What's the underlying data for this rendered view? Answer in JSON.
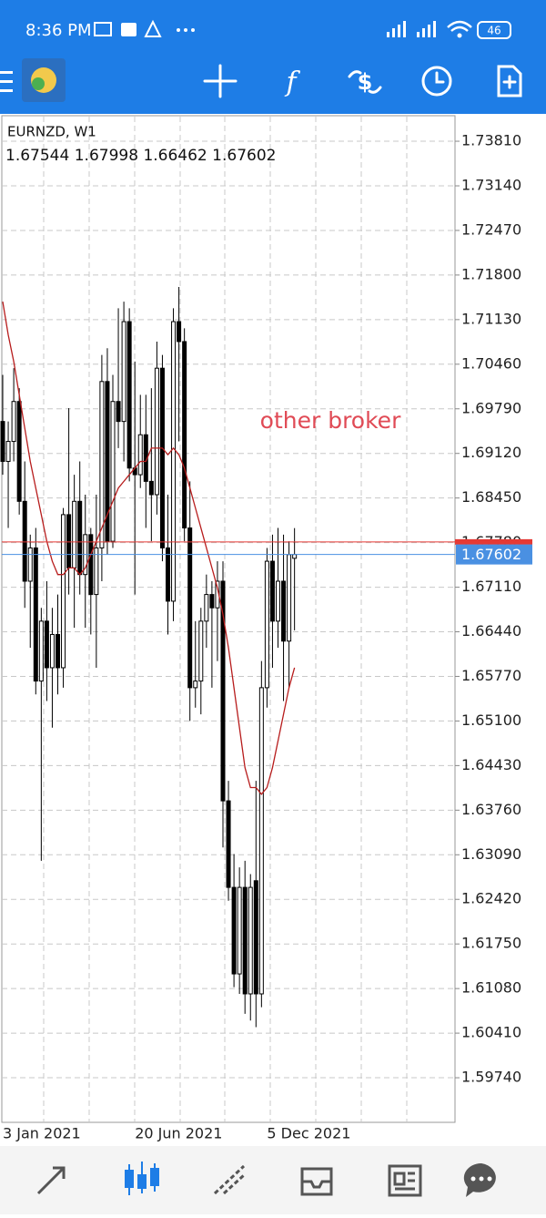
{
  "status_bar": {
    "time": "8:36 PM",
    "battery": "46"
  },
  "chart_data": {
    "type": "candlestick",
    "symbol": "EURNZD, W1",
    "last_ohlc": [
      1.67544,
      1.67998,
      1.66462,
      1.67602
    ],
    "annotation": "other broker",
    "annotation_color": "#e04a55",
    "up_color": "#ffffff",
    "down_color": "#000000",
    "categories": [
      "3 Jan 2021",
      null,
      null,
      null,
      null,
      null,
      null,
      null,
      null,
      null,
      null,
      null,
      null,
      null,
      null,
      null,
      null,
      null,
      null,
      null,
      null,
      null,
      null,
      null,
      "20 Jun 2021",
      null,
      null,
      null,
      null,
      null,
      null,
      null,
      null,
      null,
      null,
      null,
      null,
      null,
      null,
      null,
      null,
      null,
      null,
      null,
      null,
      null,
      null,
      null,
      "5 Dec 2021",
      null,
      null,
      null,
      null,
      null
    ],
    "open": [
      1.696,
      1.69,
      1.693,
      1.699,
      1.684,
      1.672,
      1.677,
      1.657,
      1.666,
      1.659,
      1.664,
      1.659,
      1.682,
      1.674,
      1.684,
      1.673,
      1.679,
      1.67,
      1.677,
      1.702,
      1.678,
      1.699,
      1.696,
      1.711,
      1.689,
      1.688,
      1.694,
      1.687,
      1.685,
      1.704,
      1.677,
      1.669,
      1.711,
      1.708,
      1.68,
      1.656,
      1.657,
      1.666,
      1.67,
      1.668,
      1.672,
      1.639,
      1.626,
      1.613,
      1.626,
      1.61,
      1.627,
      1.61,
      1.656,
      1.675,
      1.666,
      1.672,
      1.663,
      1.67544
    ],
    "high": [
      1.703,
      1.696,
      1.704,
      1.701,
      1.69,
      1.679,
      1.68,
      1.668,
      1.672,
      1.668,
      1.67,
      1.683,
      1.698,
      1.688,
      1.69,
      1.685,
      1.68,
      1.685,
      1.706,
      1.707,
      1.703,
      1.713,
      1.714,
      1.713,
      1.705,
      1.7,
      1.7,
      1.701,
      1.708,
      1.706,
      1.685,
      1.713,
      1.7162,
      1.71,
      1.687,
      1.666,
      1.668,
      1.673,
      1.672,
      1.675,
      1.675,
      1.642,
      1.631,
      1.629,
      1.63,
      1.628,
      1.642,
      1.66,
      1.677,
      1.679,
      1.68,
      1.679,
      1.678,
      1.67998
    ],
    "low": [
      1.688,
      1.68,
      1.69,
      1.682,
      1.668,
      1.662,
      1.655,
      1.63,
      1.654,
      1.65,
      1.655,
      1.656,
      1.67,
      1.665,
      1.67,
      1.665,
      1.664,
      1.659,
      1.672,
      1.676,
      1.677,
      1.692,
      1.69,
      1.687,
      1.67,
      1.686,
      1.68,
      1.678,
      1.682,
      1.675,
      1.664,
      1.666,
      1.693,
      1.678,
      1.651,
      1.653,
      1.652,
      1.662,
      1.656,
      1.66,
      1.632,
      1.624,
      1.611,
      1.61,
      1.607,
      1.606,
      1.605,
      1.608,
      1.653,
      1.659,
      1.662,
      1.654,
      1.656,
      1.66462
    ],
    "close": [
      1.69,
      1.693,
      1.699,
      1.684,
      1.672,
      1.677,
      1.657,
      1.666,
      1.659,
      1.664,
      1.659,
      1.682,
      1.674,
      1.684,
      1.673,
      1.679,
      1.67,
      1.677,
      1.702,
      1.678,
      1.699,
      1.696,
      1.711,
      1.689,
      1.688,
      1.694,
      1.687,
      1.685,
      1.704,
      1.677,
      1.669,
      1.711,
      1.708,
      1.68,
      1.656,
      1.657,
      1.666,
      1.67,
      1.668,
      1.672,
      1.639,
      1.626,
      1.613,
      1.626,
      1.61,
      1.626,
      1.61,
      1.656,
      1.675,
      1.666,
      1.672,
      1.663,
      1.676,
      1.67602
    ],
    "moving_average": {
      "color": "#b71c1c",
      "values": [
        1.714,
        1.709,
        1.705,
        1.7,
        1.695,
        1.69,
        1.686,
        1.682,
        1.678,
        1.675,
        1.673,
        1.673,
        1.674,
        1.674,
        1.673,
        1.674,
        1.676,
        1.678,
        1.68,
        1.682,
        1.684,
        1.686,
        1.687,
        1.688,
        1.689,
        1.69,
        1.69,
        1.692,
        1.692,
        1.692,
        1.691,
        1.692,
        1.691,
        1.689,
        1.686,
        1.683,
        1.68,
        1.677,
        1.674,
        1.671,
        1.667,
        1.662,
        1.656,
        1.65,
        1.644,
        1.641,
        1.641,
        1.64,
        1.641,
        1.644,
        1.648,
        1.652,
        1.656,
        1.659
      ]
    },
    "ask_line": {
      "value": 1.6779,
      "color": "#e53935"
    },
    "current_price": 1.67602,
    "current_price_color": "#4a90e2",
    "ylim": [
      1.5907,
      1.7418
    ],
    "yticks": [
      {
        "value": 1.7381,
        "label": "1.73810"
      },
      {
        "value": 1.7314,
        "label": "1.73140"
      },
      {
        "value": 1.7247,
        "label": "1.72470"
      },
      {
        "value": 1.718,
        "label": "1.71800"
      },
      {
        "value": 1.7113,
        "label": "1.71130"
      },
      {
        "value": 1.7046,
        "label": "1.70460"
      },
      {
        "value": 1.6979,
        "label": "1.69790"
      },
      {
        "value": 1.6912,
        "label": "1.69120"
      },
      {
        "value": 1.6845,
        "label": "1.68450"
      },
      {
        "value": 1.6778,
        "label": "1.67780"
      },
      {
        "value": 1.6711,
        "label": "1.67110"
      },
      {
        "value": 1.6644,
        "label": "1.66440"
      },
      {
        "value": 1.6577,
        "label": "1.65770"
      },
      {
        "value": 1.651,
        "label": "1.65100"
      },
      {
        "value": 1.6443,
        "label": "1.64430"
      },
      {
        "value": 1.6376,
        "label": "1.63760"
      },
      {
        "value": 1.6309,
        "label": "1.63090"
      },
      {
        "value": 1.6242,
        "label": "1.62420"
      },
      {
        "value": 1.6175,
        "label": "1.61750"
      },
      {
        "value": 1.6108,
        "label": "1.61080"
      },
      {
        "value": 1.6041,
        "label": "1.60410"
      },
      {
        "value": 1.5974,
        "label": "1.59740"
      }
    ],
    "grid": true
  }
}
